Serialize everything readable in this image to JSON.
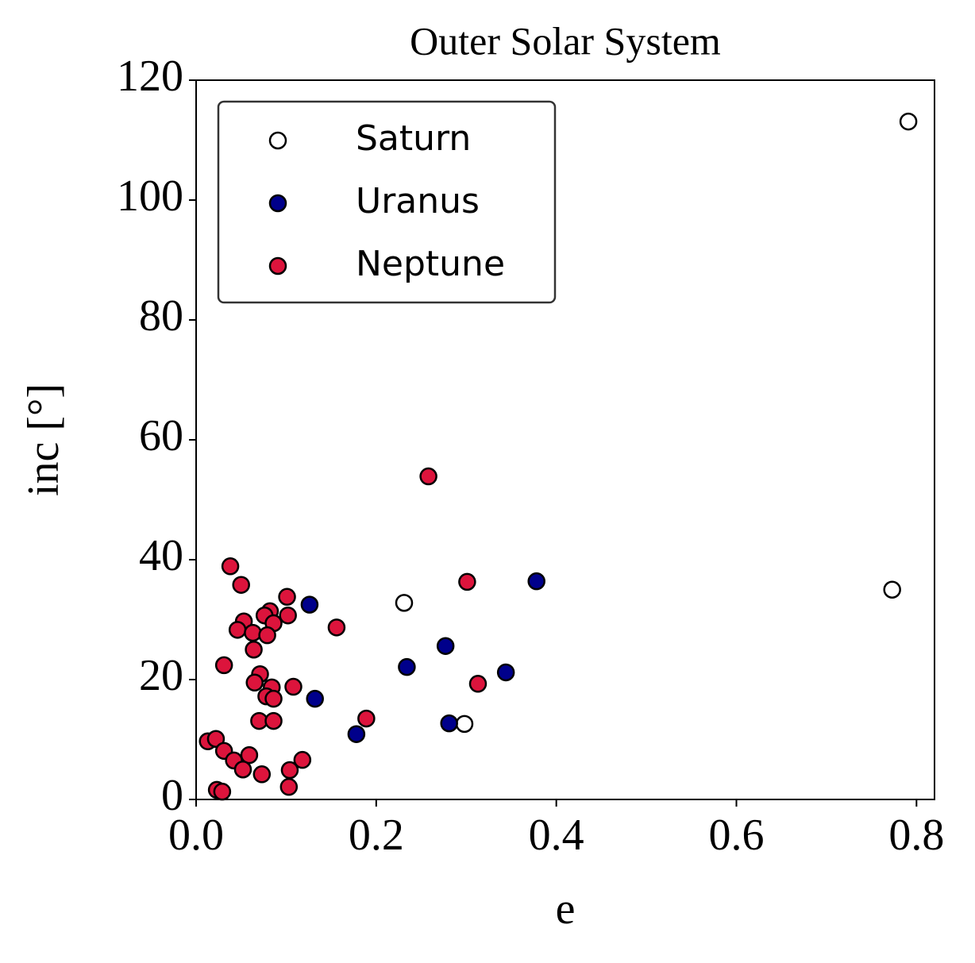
{
  "chart_data": {
    "type": "scatter",
    "title": "Outer Solar System",
    "xlabel": "e",
    "ylabel": "inc [°]",
    "xlim": [
      0,
      0.82
    ],
    "ylim": [
      0,
      120
    ],
    "xticks": [
      {
        "value": 0,
        "label": "0.0"
      },
      0.2,
      0.4,
      0.6,
      0.8
    ],
    "yticks": [
      0,
      20,
      40,
      60,
      80,
      100,
      120
    ],
    "legend": "upper left",
    "edgecolor": "black",
    "series": [
      {
        "name": "Saturn",
        "color": "white",
        "x": [
          0.791,
          0.773,
          0.231,
          0.298
        ],
        "y": [
          113.1,
          35.0,
          32.8,
          12.6
        ]
      },
      {
        "name": "Uranus",
        "color": "#00008b",
        "x": [
          0.126,
          0.132,
          0.178,
          0.234,
          0.277,
          0.281,
          0.344,
          0.378
        ],
        "y": [
          32.5,
          16.8,
          10.9,
          22.1,
          25.6,
          12.7,
          21.2,
          36.4
        ]
      },
      {
        "name": "Neptune",
        "color": "#dc143c",
        "x": [
          0.258,
          0.038,
          0.05,
          0.101,
          0.301,
          0.156,
          0.082,
          0.076,
          0.102,
          0.053,
          0.046,
          0.086,
          0.063,
          0.079,
          0.064,
          0.031,
          0.071,
          0.065,
          0.084,
          0.108,
          0.078,
          0.086,
          0.313,
          0.189,
          0.07,
          0.086,
          0.013,
          0.022,
          0.031,
          0.059,
          0.042,
          0.118,
          0.052,
          0.073,
          0.104,
          0.103,
          0.023,
          0.029
        ],
        "y": [
          53.9,
          38.9,
          35.8,
          33.8,
          36.3,
          28.7,
          31.4,
          30.7,
          30.7,
          29.7,
          28.3,
          29.4,
          27.8,
          27.4,
          25.0,
          22.4,
          20.9,
          19.5,
          18.7,
          18.8,
          17.2,
          16.8,
          19.3,
          13.5,
          13.1,
          13.1,
          9.7,
          10.1,
          8.1,
          7.4,
          6.5,
          6.6,
          5.0,
          4.2,
          4.9,
          2.1,
          1.6,
          1.3
        ]
      }
    ]
  }
}
